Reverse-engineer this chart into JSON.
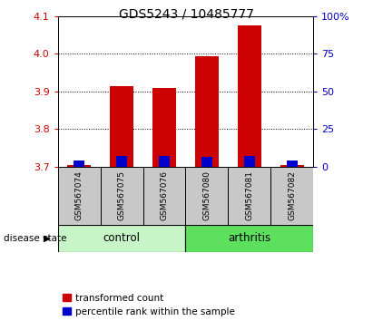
{
  "title": "GDS5243 / 10485777",
  "samples": [
    "GSM567074",
    "GSM567075",
    "GSM567076",
    "GSM567080",
    "GSM567081",
    "GSM567082"
  ],
  "red_values": [
    3.705,
    3.915,
    3.91,
    3.993,
    4.075,
    3.705
  ],
  "blue_values": [
    3.718,
    3.728,
    3.728,
    3.726,
    3.728,
    3.718
  ],
  "y_min": 3.7,
  "y_max": 4.1,
  "y_ticks_left": [
    3.7,
    3.8,
    3.9,
    4.0,
    4.1
  ],
  "y_ticks_right": [
    0,
    25,
    50,
    75,
    100
  ],
  "groups": [
    {
      "label": "control",
      "indices": [
        0,
        1,
        2
      ],
      "color": "#c8f5c8"
    },
    {
      "label": "arthritis",
      "indices": [
        3,
        4,
        5
      ],
      "color": "#5de05d"
    }
  ],
  "bar_width": 0.55,
  "blue_bar_width": 0.25,
  "red_color": "#cc0000",
  "blue_color": "#0000cc",
  "label_bg_color": "#c8c8c8",
  "disease_state_label": "disease state",
  "legend_red": "transformed count",
  "legend_blue": "percentile rank within the sample",
  "left_axis_color": "#cc0000",
  "right_axis_color": "#0000cc"
}
